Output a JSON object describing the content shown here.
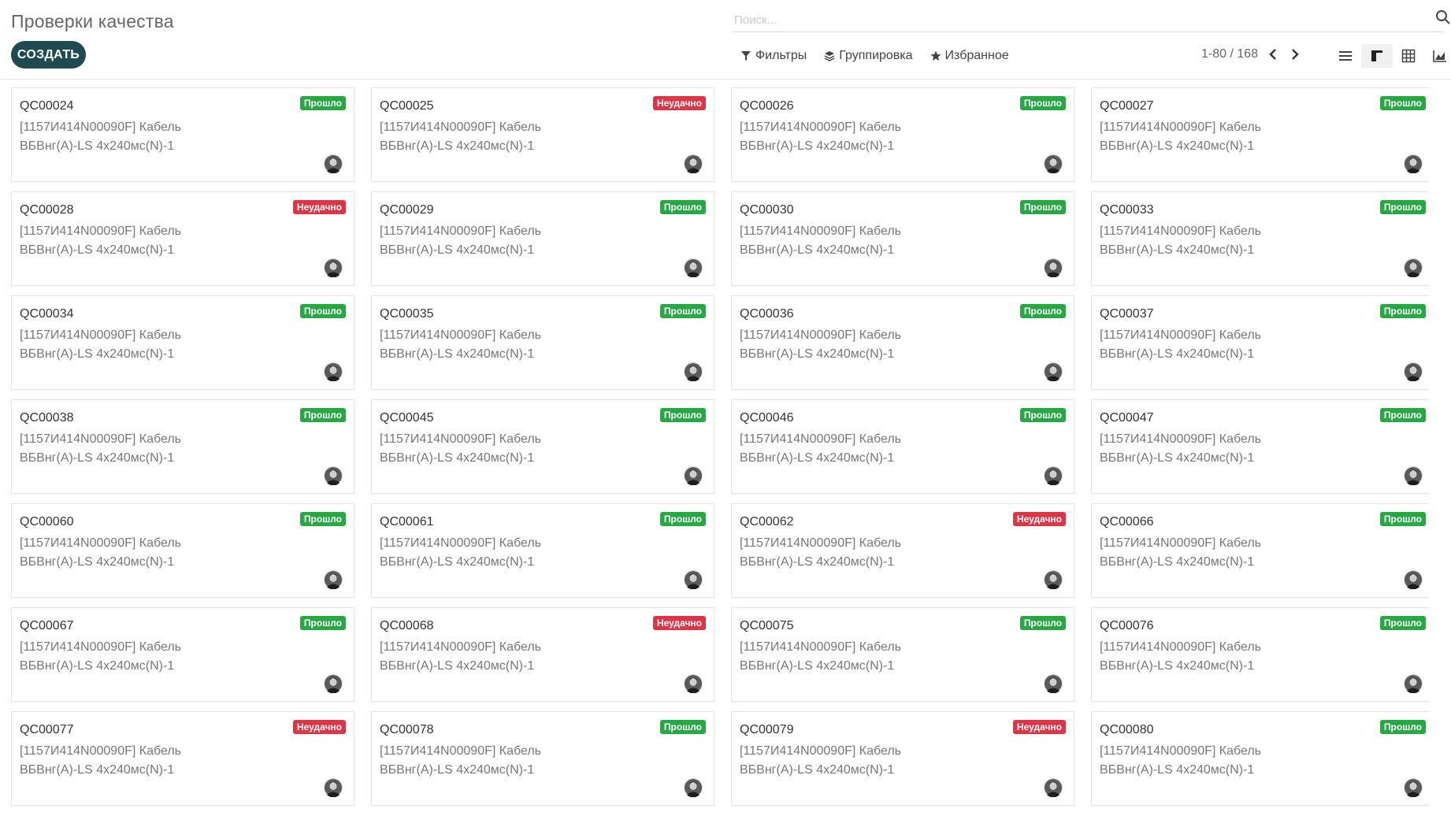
{
  "header": {
    "title": "Проверки качества",
    "create_label": "СОЗДАТЬ",
    "search_placeholder": "Поиск..."
  },
  "filters": {
    "filters_label": "Фильтры",
    "group_label": "Группировка",
    "favorites_label": "Избранное"
  },
  "pager": {
    "value": "1-80 / 168"
  },
  "views": [
    "list-view-icon",
    "kanban-view-icon",
    "pivot-view-icon",
    "graph-view-icon"
  ],
  "colors": {
    "pass": "#28a745",
    "fail": "#dc3545",
    "primary": "#1f4a4f"
  },
  "product": {
    "line1": "[1157И414N00090F] Кабель",
    "line2": "ВБВнг(A)-LS 4x240мс(N)-1"
  },
  "status_labels": {
    "pass": "Прошло",
    "fail": "Неудачно"
  },
  "cards": [
    {
      "name": "QC00024",
      "status": "pass"
    },
    {
      "name": "QC00025",
      "status": "fail"
    },
    {
      "name": "QC00026",
      "status": "pass"
    },
    {
      "name": "QC00027",
      "status": "pass"
    },
    {
      "name": "QC00028",
      "status": "fail"
    },
    {
      "name": "QC00029",
      "status": "pass"
    },
    {
      "name": "QC00030",
      "status": "pass"
    },
    {
      "name": "QC00033",
      "status": "pass"
    },
    {
      "name": "QC00034",
      "status": "pass"
    },
    {
      "name": "QC00035",
      "status": "pass"
    },
    {
      "name": "QC00036",
      "status": "pass"
    },
    {
      "name": "QC00037",
      "status": "pass"
    },
    {
      "name": "QC00038",
      "status": "pass"
    },
    {
      "name": "QC00045",
      "status": "pass"
    },
    {
      "name": "QC00046",
      "status": "pass"
    },
    {
      "name": "QC00047",
      "status": "pass"
    },
    {
      "name": "QC00060",
      "status": "pass"
    },
    {
      "name": "QC00061",
      "status": "pass"
    },
    {
      "name": "QC00062",
      "status": "fail"
    },
    {
      "name": "QC00066",
      "status": "pass"
    },
    {
      "name": "QC00067",
      "status": "pass"
    },
    {
      "name": "QC00068",
      "status": "fail"
    },
    {
      "name": "QC00075",
      "status": "pass"
    },
    {
      "name": "QC00076",
      "status": "pass"
    },
    {
      "name": "QC00077",
      "status": "fail"
    },
    {
      "name": "QC00078",
      "status": "pass"
    },
    {
      "name": "QC00079",
      "status": "fail"
    },
    {
      "name": "QC00080",
      "status": "pass"
    }
  ]
}
